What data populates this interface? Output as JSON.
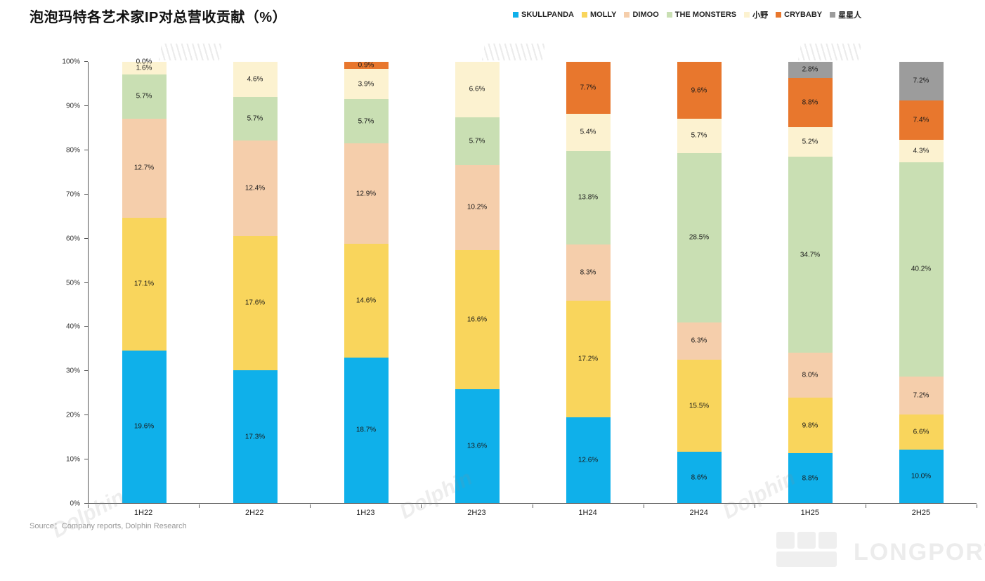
{
  "title": "泡泡玛特各艺术家IP对总营收贡献（%）",
  "source": "Source：Company reports, Dolphin Research",
  "watermark": {
    "dolphin": "Dolphin",
    "longport": "LONGPORT"
  },
  "chart_data": {
    "type": "bar",
    "stacked": true,
    "normalized_to_100_percent": true,
    "title": "泡泡玛特各艺术家IP对总营收贡献（%）",
    "categories": [
      "1H22",
      "2H22",
      "1H23",
      "2H23",
      "1H24",
      "2H24",
      "1H25",
      "2H25"
    ],
    "series": [
      {
        "name": "SKULLPANDA",
        "color": "#0FB0EA",
        "values": [
          19.6,
          17.3,
          18.7,
          13.6,
          12.6,
          8.6,
          8.8,
          10.0
        ]
      },
      {
        "name": "MOLLY",
        "color": "#F9D55C",
        "values": [
          17.1,
          17.6,
          14.6,
          16.6,
          17.2,
          15.5,
          9.8,
          6.6
        ]
      },
      {
        "name": "DIMOO",
        "color": "#F5CEAB",
        "values": [
          12.7,
          12.4,
          12.9,
          10.2,
          8.3,
          6.3,
          8.0,
          7.2
        ]
      },
      {
        "name": "THE MONSTERS",
        "color": "#C9DFB3",
        "values": [
          5.7,
          5.7,
          5.7,
          5.7,
          13.8,
          28.5,
          34.7,
          40.2
        ]
      },
      {
        "name": "小野",
        "color": "#FCF2D0",
        "values": [
          1.6,
          4.6,
          3.9,
          6.6,
          5.4,
          5.7,
          5.2,
          4.3
        ]
      },
      {
        "name": "CRYBABY",
        "color": "#E8772D",
        "values": [
          0.0,
          null,
          0.9,
          null,
          7.7,
          9.6,
          8.8,
          7.4
        ]
      },
      {
        "name": "星星人",
        "color": "#9C9C9C",
        "values": [
          null,
          null,
          null,
          null,
          null,
          null,
          2.8,
          7.2
        ]
      }
    ],
    "y_ticks": [
      "0%",
      "10%",
      "20%",
      "30%",
      "40%",
      "50%",
      "60%",
      "70%",
      "80%",
      "90%",
      "100%"
    ],
    "ylim": [
      0,
      100
    ],
    "grid": false,
    "legend_position": "top-right",
    "label_format": "one_decimal_percent"
  }
}
